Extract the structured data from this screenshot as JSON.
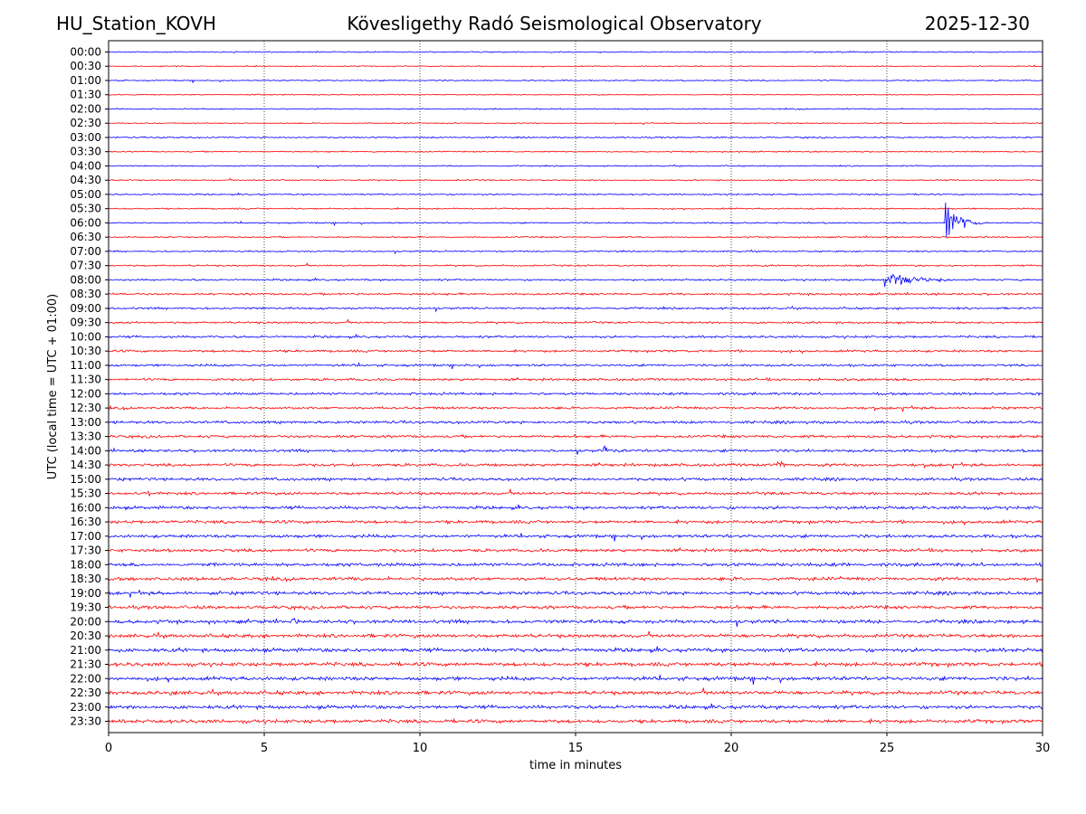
{
  "header": {
    "station": "HU_Station_KOVH",
    "observatory": "Kövesligethy Radó Seismological Observatory",
    "date": "2025-12-30"
  },
  "chart_data": {
    "type": "line",
    "title": "Kövesligethy Radó Seismological Observatory",
    "xlabel": "time in minutes",
    "ylabel": "UTC (local time = UTC + 01:00)",
    "xlim": [
      0,
      30
    ],
    "x_ticks": [
      "0",
      "5",
      "10",
      "15",
      "20",
      "25",
      "30"
    ],
    "grid": "vertical dotted at every 5 minutes",
    "rows": [
      "00:00",
      "00:30",
      "01:00",
      "01:30",
      "02:00",
      "02:30",
      "03:00",
      "03:30",
      "04:00",
      "04:30",
      "05:00",
      "05:30",
      "06:00",
      "06:30",
      "07:00",
      "07:30",
      "08:00",
      "08:30",
      "09:00",
      "09:30",
      "10:00",
      "10:30",
      "11:00",
      "11:30",
      "12:00",
      "12:30",
      "13:00",
      "13:30",
      "14:00",
      "14:30",
      "15:00",
      "15:30",
      "16:00",
      "16:30",
      "17:00",
      "17:30",
      "18:00",
      "18:30",
      "19:00",
      "19:30",
      "20:00",
      "20:30",
      "21:00",
      "21:30",
      "22:00",
      "22:30",
      "23:00",
      "23:30"
    ],
    "row_colors": [
      "#0000ff",
      "#ff0000"
    ],
    "noise_level": [
      0.6,
      0.5,
      0.6,
      0.5,
      0.6,
      0.5,
      0.7,
      0.6,
      0.6,
      0.6,
      0.7,
      0.7,
      0.7,
      0.7,
      0.7,
      0.8,
      0.9,
      1.0,
      1.0,
      1.0,
      1.1,
      1.1,
      1.1,
      1.2,
      1.2,
      1.2,
      1.3,
      1.3,
      1.3,
      1.4,
      1.4,
      1.4,
      1.5,
      1.5,
      1.5,
      1.5,
      1.6,
      1.6,
      1.6,
      1.6,
      1.7,
      1.7,
      1.8,
      1.8,
      1.8,
      1.8,
      1.7,
      1.7
    ],
    "events": [
      {
        "row": "06:00",
        "start_min": 26.9,
        "duration_min": 1.2,
        "amplitude": 24
      },
      {
        "row": "08:00",
        "start_min": 24.9,
        "duration_min": 2.5,
        "amplitude": 10
      },
      {
        "row": "14:00",
        "start_min": 15.9,
        "duration_min": 0.5,
        "amplitude": 7
      },
      {
        "row": "14:30",
        "start_min": 21.5,
        "duration_min": 0.5,
        "amplitude": 7
      },
      {
        "row": "15:30",
        "start_min": 1.3,
        "duration_min": 0.05,
        "amplitude": 9
      },
      {
        "row": "20:00",
        "start_min": 5.9,
        "duration_min": 0.4,
        "amplitude": 7
      },
      {
        "row": "22:30",
        "start_min": 2.0,
        "duration_min": 0.3,
        "amplitude": 5
      }
    ]
  }
}
